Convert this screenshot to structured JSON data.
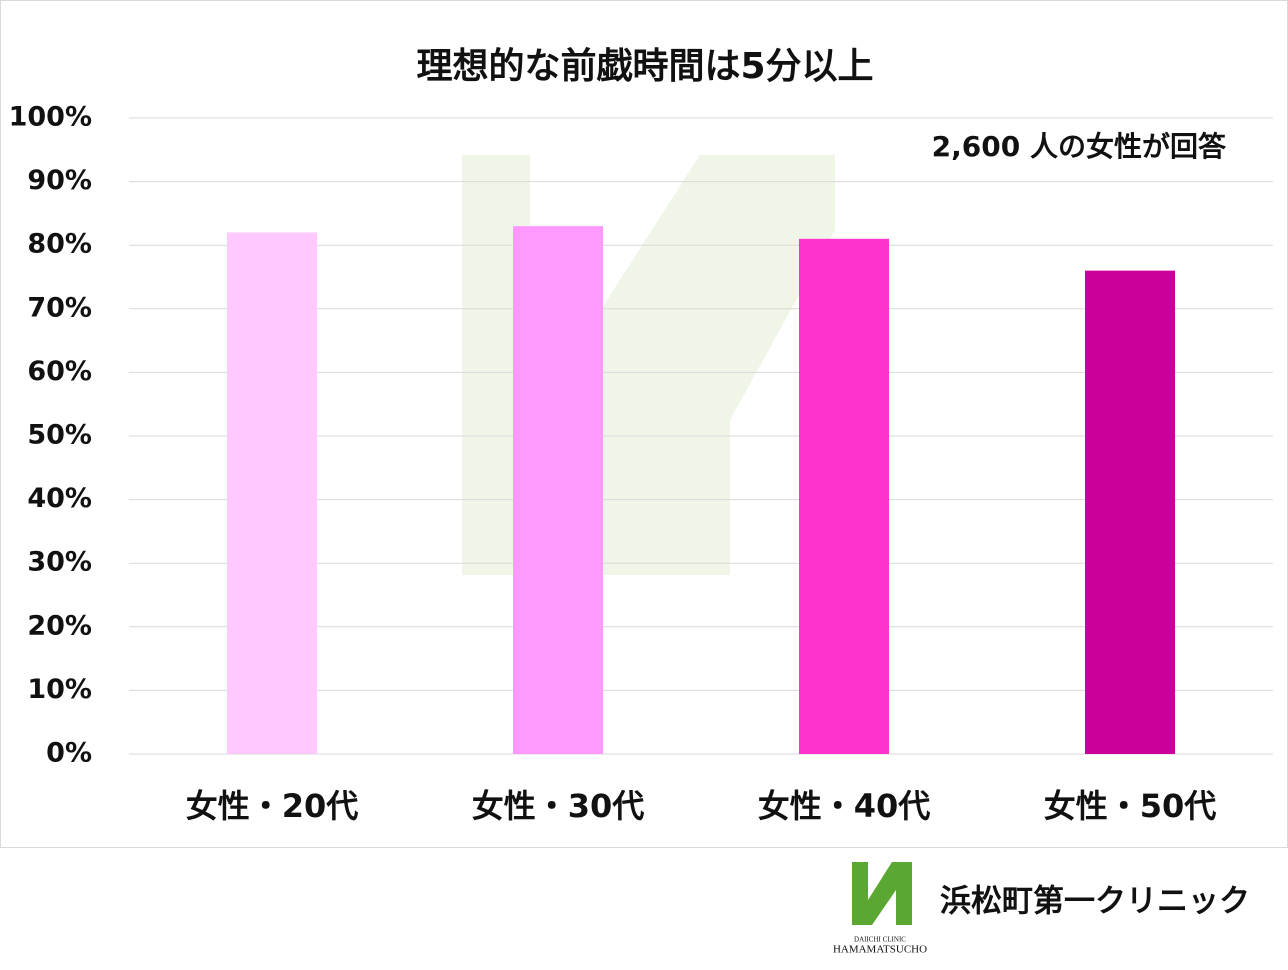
{
  "chart_data": {
    "type": "bar",
    "title": "理想的な前戯時間は5分以上",
    "annotation": "2,600 人の女性が回答",
    "categories": [
      "女性・20代",
      "女性・30代",
      "女性・40代",
      "女性・50代"
    ],
    "values": [
      82,
      83,
      81,
      76
    ],
    "colors": [
      "#ffc8ff",
      "#ff99ff",
      "#ff33cc",
      "#cc0099"
    ],
    "ylim": [
      0,
      100
    ],
    "yticks": [
      {
        "value": 0,
        "label": "0%"
      },
      {
        "value": 10,
        "label": "10%"
      },
      {
        "value": 20,
        "label": "20%"
      },
      {
        "value": 30,
        "label": "30%"
      },
      {
        "value": 40,
        "label": "40%"
      },
      {
        "value": 50,
        "label": "50%"
      },
      {
        "value": 60,
        "label": "60%"
      },
      {
        "value": 70,
        "label": "70%"
      },
      {
        "value": 80,
        "label": "80%"
      },
      {
        "value": 90,
        "label": "90%"
      },
      {
        "value": 100,
        "label": "100%"
      }
    ],
    "grid": true
  },
  "logo": {
    "name": "浜松町第一クリニック",
    "sub_top": "DAIICHI CLINIC",
    "sub_bottom": "HAMAMATSUCHO"
  }
}
